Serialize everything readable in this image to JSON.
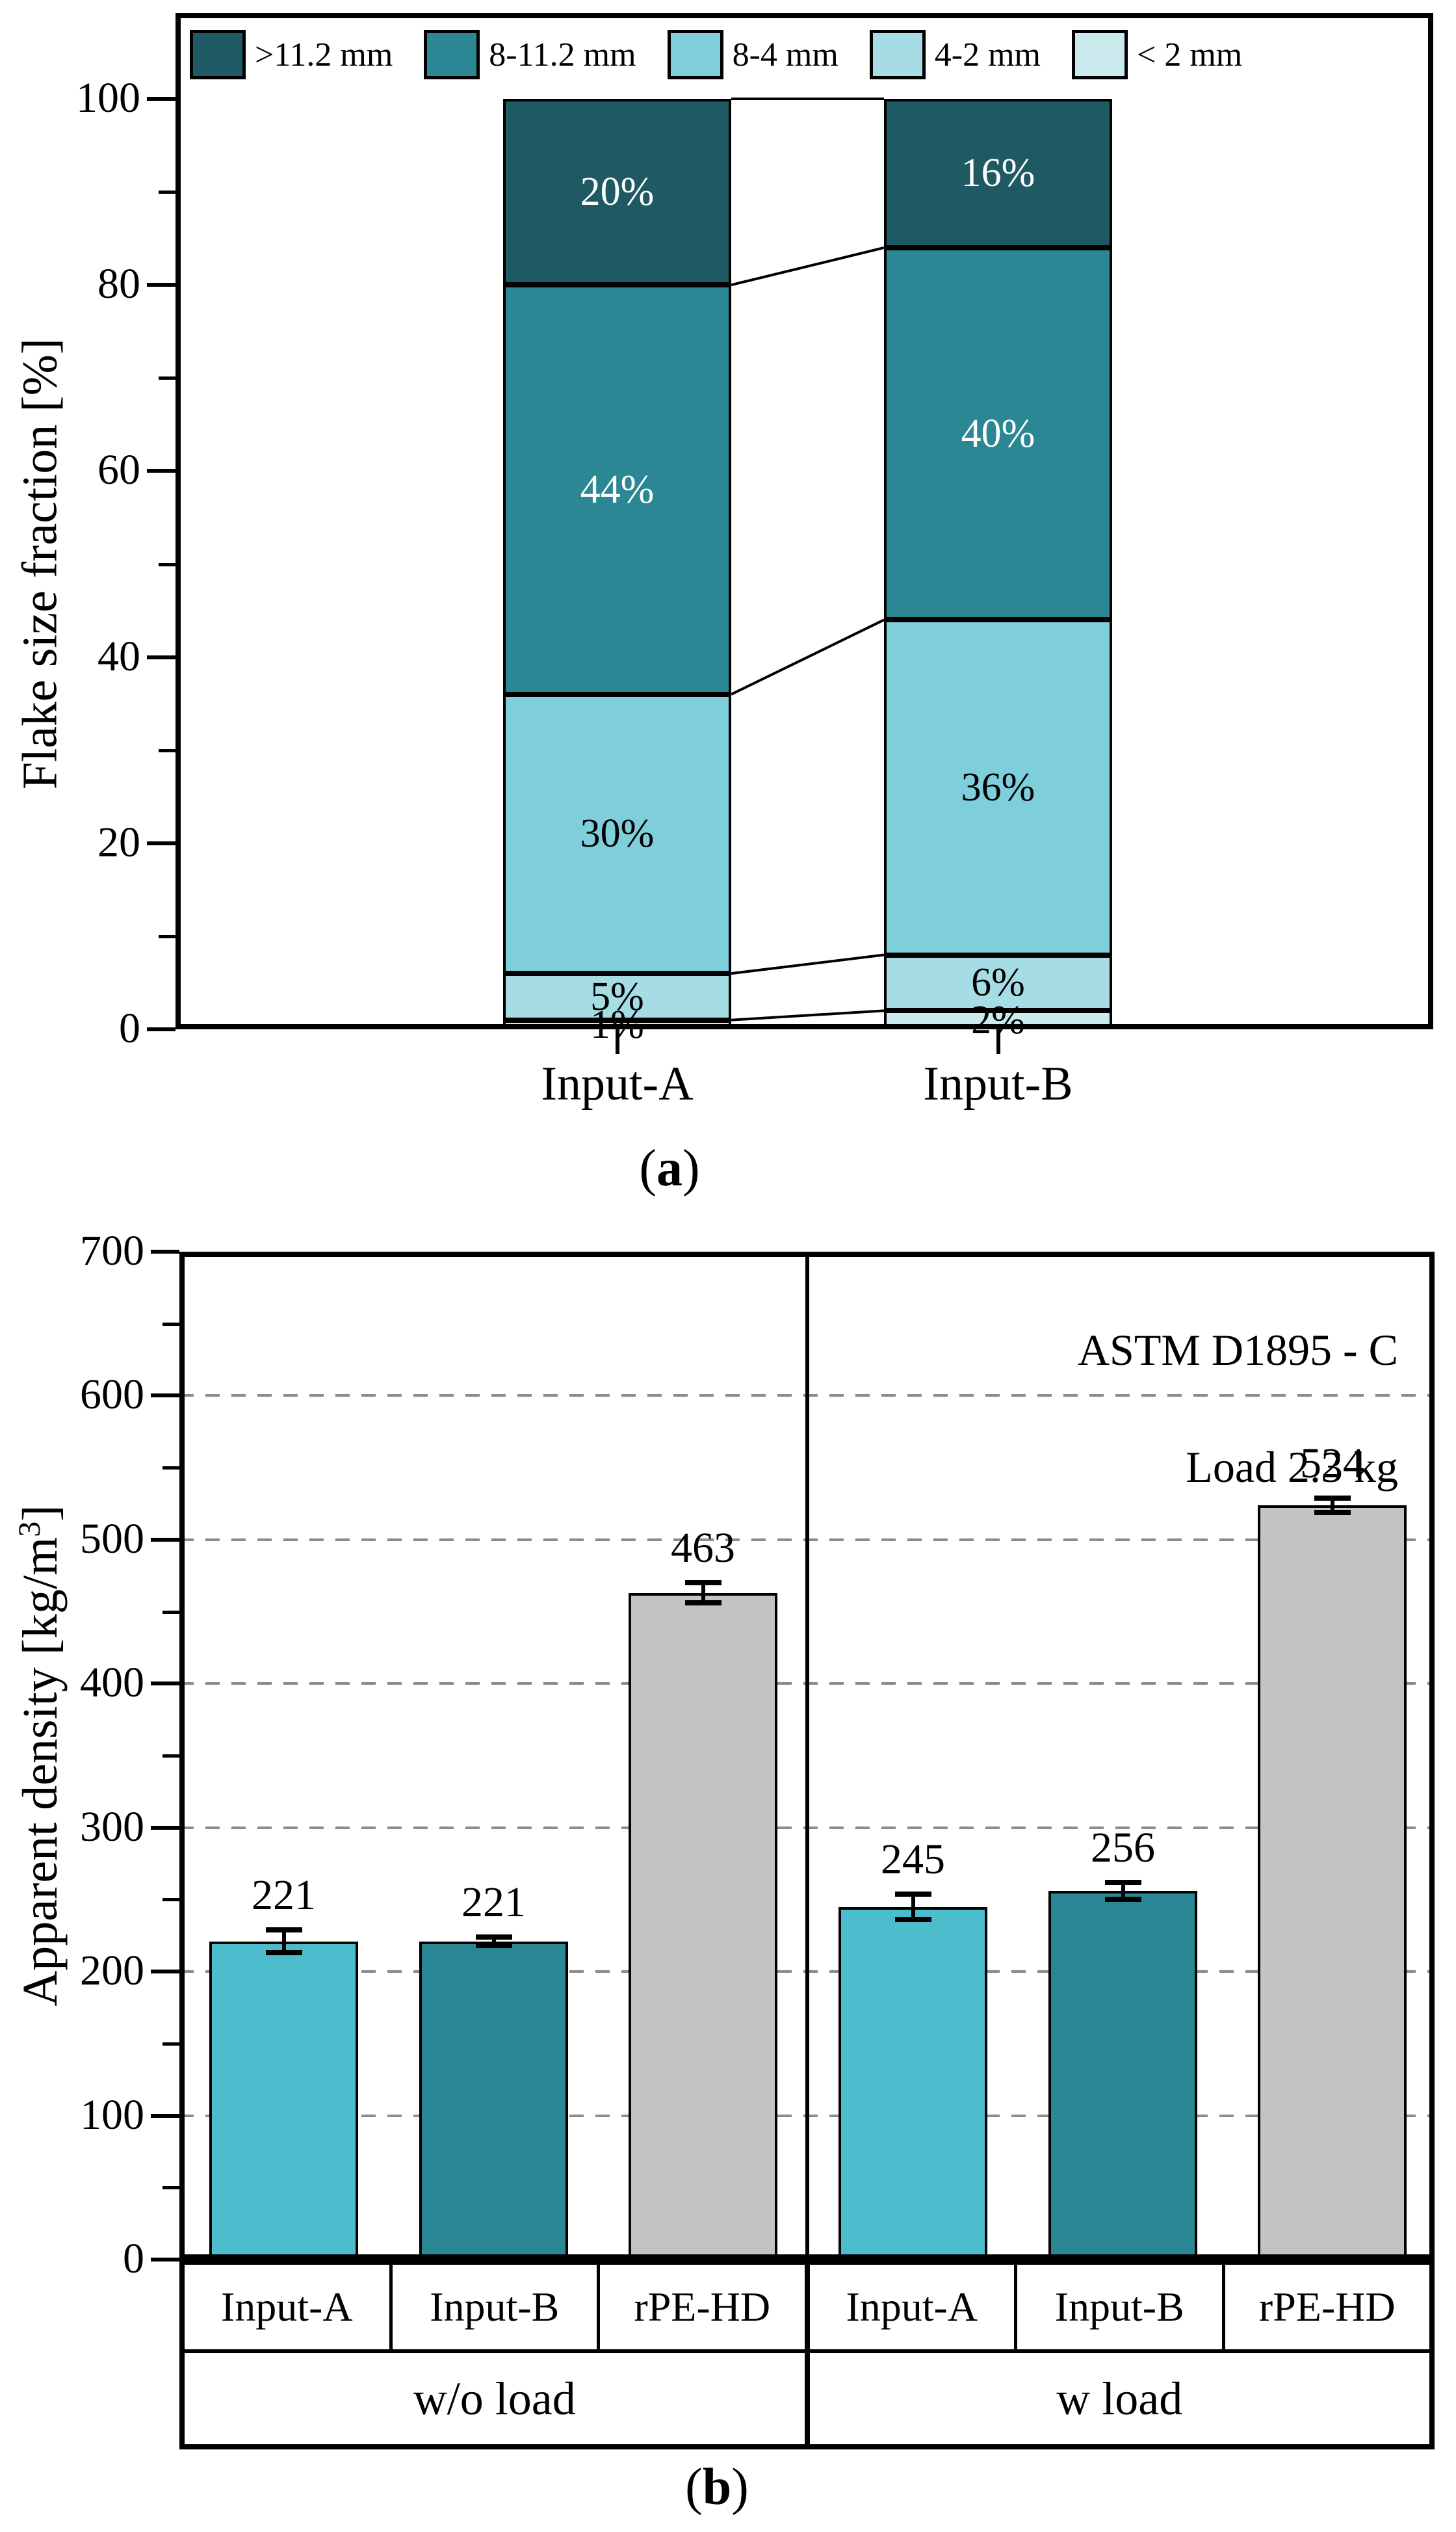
{
  "figure": {
    "paren_open": "(",
    "paren_close": ")",
    "caption_a": "a",
    "caption_b": "b"
  },
  "chart_data": [
    {
      "id": "a",
      "type": "bar",
      "subtype": "stacked-vertical",
      "ylabel": "Flake size fraction [%]",
      "ylim": [
        0,
        100
      ],
      "yticks_major": [
        0,
        20,
        40,
        60,
        80,
        100
      ],
      "yticks_minor": [
        10,
        30,
        50,
        70,
        90
      ],
      "categories": [
        "Input-A",
        "Input-B"
      ],
      "value_suffix": "%",
      "legend_position": "top-inside",
      "grid": false,
      "series": [
        {
          "name": ">11.2 mm",
          "color": "#1F5A64",
          "label_color": "#ffffff",
          "values": [
            20,
            16
          ]
        },
        {
          "name": "8-11.2 mm",
          "color": "#2A8793",
          "label_color": "#ffffff",
          "values": [
            44,
            40
          ]
        },
        {
          "name": "8-4 mm",
          "color": "#7FCEDC",
          "label_color": "#000000",
          "values": [
            30,
            36
          ]
        },
        {
          "name": "4-2 mm",
          "color": "#A6DDE5",
          "label_color": "#000000",
          "values": [
            5,
            6
          ]
        },
        {
          "name": "< 2 mm",
          "color": "#CAEAEE",
          "label_color": "#000000",
          "values": [
            1,
            2
          ]
        }
      ]
    },
    {
      "id": "b",
      "type": "bar",
      "subtype": "grouped-vertical-with-errorbars",
      "ylabel_main": "Apparent density [kg/m",
      "ylabel_sup": "3",
      "ylabel_close": "]",
      "ylim": [
        0,
        700
      ],
      "yticks_major": [
        0,
        100,
        200,
        300,
        400,
        500,
        600,
        700
      ],
      "yticks_minor": [
        50,
        150,
        250,
        350,
        450,
        550,
        650
      ],
      "gridlines": [
        100,
        200,
        300,
        400,
        500,
        600
      ],
      "grid_style": "dashed",
      "annotations": [
        "ASTM D1895 - C",
        "Load 2.3 kg"
      ],
      "groups": [
        {
          "label": "w/o load",
          "bars": [
            {
              "label": "Input-A",
              "value": 221,
              "error": 8,
              "color": "#4CBDCC"
            },
            {
              "label": "Input-B",
              "value": 221,
              "error": 3,
              "color": "#2A8793"
            },
            {
              "label": "rPE-HD",
              "value": 463,
              "error": 7,
              "color": "#C3C3C5"
            }
          ]
        },
        {
          "label": "w load",
          "bars": [
            {
              "label": "Input-A",
              "value": 245,
              "error": 9,
              "color": "#4CBDCC"
            },
            {
              "label": "Input-B",
              "value": 256,
              "error": 6,
              "color": "#2A8793"
            },
            {
              "label": "rPE-HD",
              "value": 524,
              "error": 5,
              "color": "#C3C3C5"
            }
          ]
        }
      ]
    }
  ]
}
